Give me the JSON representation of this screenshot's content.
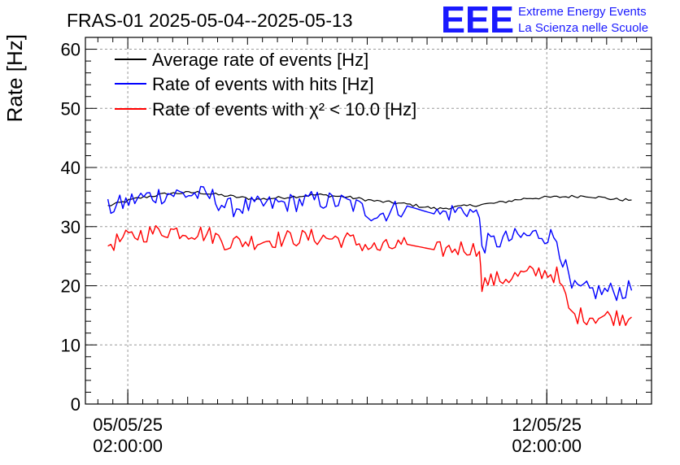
{
  "chart_data": {
    "type": "line",
    "title": "FRAS-01 2025-05-04--2025-05-13",
    "ylabel": "Rate [Hz]",
    "xlabel": "",
    "ylim": [
      0,
      62
    ],
    "xlim": [
      "2025-05-04 09:00",
      "2025-05-13 20:00"
    ],
    "yticks": [
      0,
      10,
      20,
      30,
      40,
      50,
      60
    ],
    "xticks": [
      {
        "x": "2025-05-05 02:00",
        "line1": "05/05/25",
        "line2": "02:00:00"
      },
      {
        "x": "2025-05-12 02:00",
        "line1": "12/05/25",
        "line2": "02:00:00"
      }
    ],
    "grid": true,
    "legend_position": "top-left",
    "series": [
      {
        "name": "Average rate of events [Hz]",
        "color": "#000000",
        "x": [
          "2025-05-04 18:00",
          "2025-05-05 06:00",
          "2025-05-05 18:00",
          "2025-05-06 06:00",
          "2025-05-06 18:00",
          "2025-05-07 06:00",
          "2025-05-07 18:00",
          "2025-05-08 06:00",
          "2025-05-08 18:00",
          "2025-05-09 06:00",
          "2025-05-09 18:00",
          "2025-05-10 06:00",
          "2025-05-10 18:00",
          "2025-05-11 06:00",
          "2025-05-11 18:00",
          "2025-05-12 06:00",
          "2025-05-12 18:00",
          "2025-05-13 06:00",
          "2025-05-13 12:00"
        ],
        "y": [
          33.5,
          34.8,
          35.6,
          35.8,
          35.2,
          34.6,
          35.0,
          35.4,
          35.0,
          34.3,
          33.8,
          33.0,
          33.5,
          34.0,
          34.8,
          35.0,
          35.2,
          34.6,
          34.5
        ]
      },
      {
        "name": "Rate of events with hits [Hz]",
        "color": "#0000ff",
        "x": [
          "2025-05-04 18:00",
          "2025-05-05 06:00",
          "2025-05-05 18:00",
          "2025-05-06 06:00",
          "2025-05-06 12:00",
          "2025-05-06 18:00",
          "2025-05-07 06:00",
          "2025-05-07 18:00",
          "2025-05-08 06:00",
          "2025-05-08 18:00",
          "2025-05-09 06:00",
          "2025-05-09 18:00",
          "2025-05-10 06:00",
          "2025-05-10 18:00",
          "2025-05-10 23:00",
          "2025-05-11 00:00",
          "2025-05-11 12:00",
          "2025-05-12 00:00",
          "2025-05-12 06:00",
          "2025-05-12 12:00",
          "2025-05-13 00:00",
          "2025-05-13 12:00"
        ],
        "y": [
          33.0,
          34.8,
          35.6,
          35.4,
          35.0,
          33.2,
          33.5,
          34.0,
          34.5,
          34.0,
          32.0,
          33.5,
          32.0,
          33.0,
          31.5,
          27.0,
          28.0,
          28.8,
          28.0,
          19.3,
          19.0,
          19.2
        ]
      },
      {
        "name": "Rate of events with χ² < 10.0 [Hz]",
        "color": "#ff0000",
        "x": [
          "2025-05-04 18:00",
          "2025-05-05 06:00",
          "2025-05-05 18:00",
          "2025-05-06 06:00",
          "2025-05-06 12:00",
          "2025-05-06 18:00",
          "2025-05-07 06:00",
          "2025-05-07 18:00",
          "2025-05-08 06:00",
          "2025-05-08 18:00",
          "2025-05-09 06:00",
          "2025-05-09 18:00",
          "2025-05-10 06:00",
          "2025-05-10 18:00",
          "2025-05-10 23:00",
          "2025-05-11 00:00",
          "2025-05-11 12:00",
          "2025-05-12 00:00",
          "2025-05-12 06:00",
          "2025-05-12 12:00",
          "2025-05-13 00:00",
          "2025-05-13 12:00"
        ],
        "y": [
          27.0,
          28.6,
          29.4,
          29.0,
          28.5,
          27.3,
          27.6,
          28.0,
          28.2,
          27.8,
          26.2,
          27.0,
          26.0,
          26.5,
          25.8,
          20.5,
          21.5,
          22.4,
          21.8,
          15.0,
          14.8,
          14.7
        ]
      }
    ]
  },
  "logo": {
    "letters": "EEE",
    "line1": "Extreme Energy Events",
    "line2": "La Scienza nelle Scuole"
  }
}
